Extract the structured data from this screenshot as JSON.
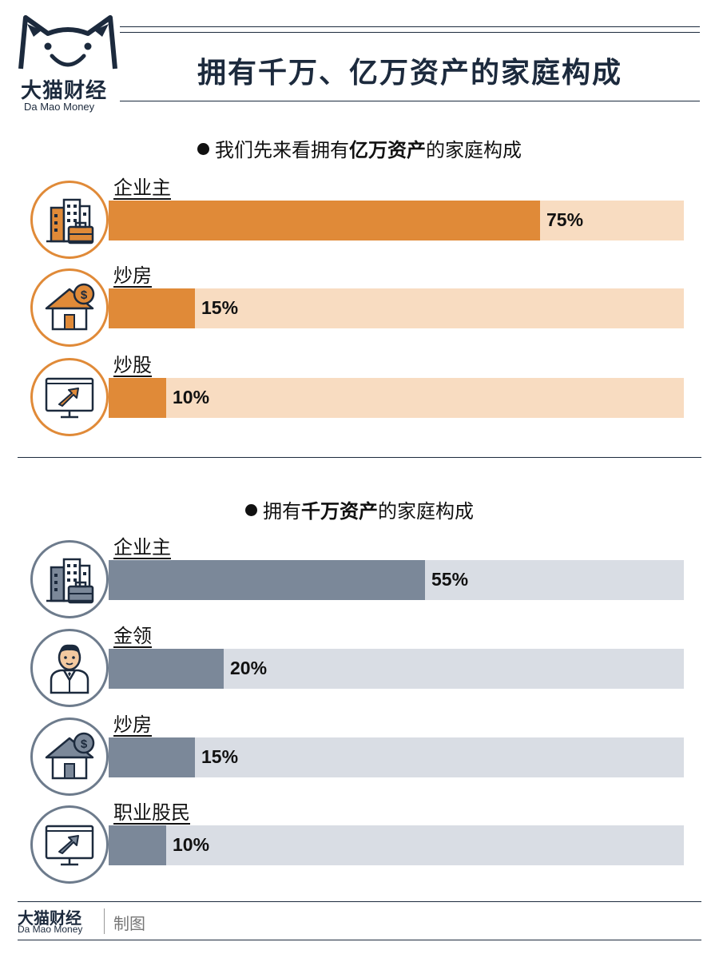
{
  "header": {
    "title": "拥有千万、亿万资产的家庭构成",
    "logo_zh": "大猫财经",
    "logo_en": "Da Mao Money"
  },
  "colors": {
    "navy": "#1c2a3d",
    "orange": "#e08a38",
    "orange_light": "#f8dcc1",
    "slate": "#7b8899",
    "slate_light": "#d9dde4"
  },
  "sections": [
    {
      "prefix": "我们先来看拥有",
      "emph": "亿万资产",
      "suffix": "的家庭构成"
    },
    {
      "prefix": "拥有",
      "emph": "千万资产",
      "suffix": "的家庭构成"
    }
  ],
  "chart_data": [
    {
      "type": "bar",
      "categories": [
        "企业主",
        "炒房",
        "炒股"
      ],
      "values": [
        75,
        15,
        10
      ],
      "value_labels": [
        "75%",
        "15%",
        "10%"
      ],
      "icons": [
        "buildings-briefcase-icon",
        "house-coin-icon",
        "monitor-chart-icon"
      ],
      "xlim": [
        0,
        100
      ],
      "orientation": "horizontal"
    },
    {
      "type": "bar",
      "categories": [
        "企业主",
        "金领",
        "炒房",
        "职业股民"
      ],
      "values": [
        55,
        20,
        15,
        10
      ],
      "value_labels": [
        "55%",
        "20%",
        "15%",
        "10%"
      ],
      "icons": [
        "buildings-briefcase-icon",
        "businessman-icon",
        "house-coin-icon",
        "monitor-chart-icon"
      ],
      "xlim": [
        0,
        100
      ],
      "orientation": "horizontal"
    }
  ],
  "footer": {
    "brand_zh": "大猫财经",
    "brand_en": "Da Mao Money",
    "note": "制图"
  }
}
